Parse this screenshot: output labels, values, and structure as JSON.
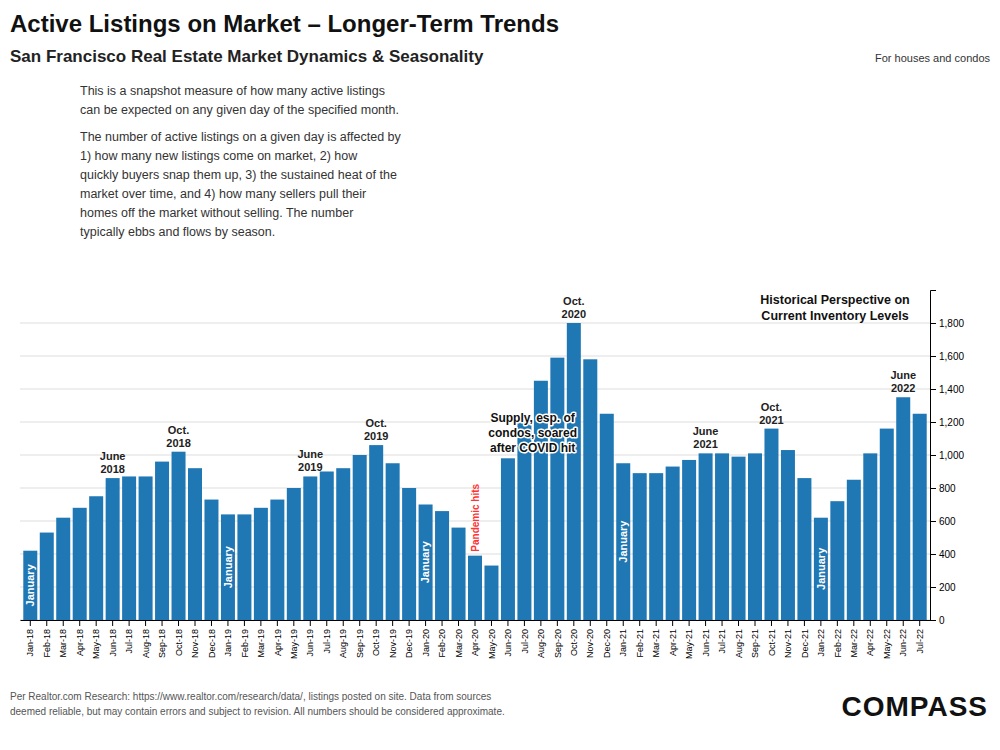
{
  "chart_data": {
    "type": "bar",
    "title": "Active Listings on Market – Longer-Term Trends",
    "subtitle": "San Francisco Real Estate Market Dynamics & Seasonality",
    "caption": "For houses and condos",
    "description": [
      "This is a snapshot measure of how many active listings",
      "can be expected on any given day of the specified month.",
      "The number of active listings on a given day is affected by",
      "1) how many new listings come on market, 2) how",
      "quickly buyers snap them up, 3) the sustained heat of the",
      "market over time, and 4) how many sellers pull their",
      "homes off the market without selling. The number",
      "typically ebbs and flows by season."
    ],
    "categories": [
      "Jan-18",
      "Feb-18",
      "Mar-18",
      "Apr-18",
      "May-18",
      "Jun-18",
      "Jul-18",
      "Aug-18",
      "Sep-18",
      "Oct-18",
      "Nov-18",
      "Dec-18",
      "Jan-19",
      "Feb-19",
      "Mar-19",
      "Apr-19",
      "May-19",
      "Jun-19",
      "Jul-19",
      "Aug-19",
      "Sep-19",
      "Oct-19",
      "Nov-19",
      "Dec-19",
      "Jan-20",
      "Feb-20",
      "Mar-20",
      "Apr-20",
      "May-20",
      "Jun-20",
      "Jul-20",
      "Aug-20",
      "Sep-20",
      "Oct-20",
      "Nov-20",
      "Dec-20",
      "Jan-21",
      "Feb-21",
      "Mar-21",
      "Apr-21",
      "May-21",
      "Jun-21",
      "Jul-21",
      "Aug-21",
      "Sep-21",
      "Oct-21",
      "Nov-21",
      "Dec-21",
      "Jan-22",
      "Feb-22",
      "Mar-22",
      "Apr-22",
      "May-22",
      "Jun-22",
      "Jul-22"
    ],
    "values": [
      420,
      530,
      620,
      680,
      750,
      860,
      870,
      870,
      960,
      1020,
      920,
      730,
      640,
      640,
      680,
      730,
      800,
      870,
      900,
      920,
      1000,
      1060,
      950,
      800,
      700,
      660,
      560,
      390,
      330,
      980,
      1200,
      1450,
      1590,
      1800,
      1580,
      1250,
      950,
      890,
      890,
      930,
      970,
      1010,
      1010,
      990,
      1010,
      1160,
      1030,
      860,
      620,
      720,
      850,
      1010,
      1160,
      1350,
      1250
    ],
    "ylim": [
      0,
      2000
    ],
    "yticks": [
      0,
      200,
      400,
      600,
      800,
      {
        "value": 1000,
        "label": "1,000"
      },
      {
        "value": 1200,
        "label": "1,200"
      },
      {
        "value": 1400,
        "label": "1,400"
      },
      {
        "value": 1600,
        "label": "1,600"
      },
      {
        "value": 1800,
        "label": "1,800"
      }
    ],
    "grid": true,
    "inside_labels": {
      "text": "January",
      "categories": [
        "Jan-18",
        "Jan-19",
        "Jan-20",
        "Jan-21",
        "Jan-22"
      ]
    },
    "peak_labels": [
      {
        "category": "Jun-18",
        "text": "June\n2018"
      },
      {
        "category": "Oct-18",
        "text": "Oct.\n2018"
      },
      {
        "category": "Jun-19",
        "text": "June\n2019"
      },
      {
        "category": "Oct-19",
        "text": "Oct.\n2019"
      },
      {
        "category": "Oct-20",
        "text": "Oct.\n2020"
      },
      {
        "category": "Jun-21",
        "text": "June\n2021"
      },
      {
        "category": "Oct-21",
        "text": "Oct.\n2021"
      },
      {
        "category": "Jun-22",
        "text": "June\n2022"
      }
    ],
    "annotations": [
      {
        "category": "Apr-20",
        "text": "Pandemic hits",
        "color": "#ff3333"
      },
      {
        "category": "Jul-20",
        "text": "Supply, esp. of\ncondos, soared\nafter COVID hit"
      }
    ],
    "callout": "Historical Perspective on\nCurrent Inventory Levels",
    "footnote": [
      "Per Realtor.com Research: https://www.realtor.com/research/data/, listings posted on site. Data from sources",
      "deemed reliable, but may contain errors and subject to revision. All numbers should be considered approximate."
    ],
    "logo": "COMPASS"
  }
}
